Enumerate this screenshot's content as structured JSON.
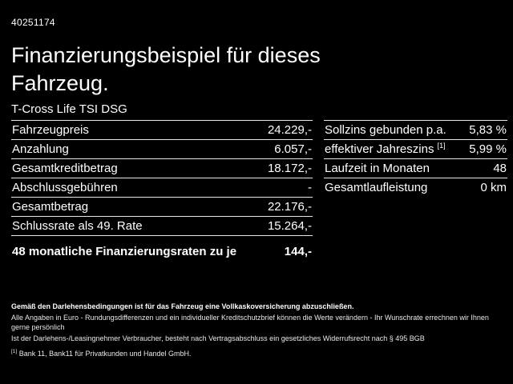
{
  "header": {
    "vehicle_id": "40251174",
    "title_line1": "Finanzierungsbeispiel für dieses",
    "title_line2": "Fahrzeug.",
    "model": "T-Cross Life TSI DSG"
  },
  "left_table": {
    "rows": [
      {
        "label": "Fahrzeugpreis",
        "value": "24.229,-"
      },
      {
        "label": "Anzahlung",
        "value": "6.057,-"
      },
      {
        "label": "Gesamtkreditbetrag",
        "value": "18.172,-"
      },
      {
        "label": "Abschlussgebühren",
        "value": "-"
      },
      {
        "label": "Gesamtbetrag",
        "value": "22.176,-"
      },
      {
        "label": "Schlussrate als 49. Rate",
        "value": "15.264,-"
      },
      {
        "label": "48 monatliche Finanzierungsraten zu je",
        "value": "144,-"
      }
    ]
  },
  "right_table": {
    "rows": [
      {
        "label": "Sollzins gebunden p.a.",
        "sup": "",
        "value": "5,83 %"
      },
      {
        "label": "effektiver Jahreszins ",
        "sup": "[1]",
        "value": "5,99 %"
      },
      {
        "label": "Laufzeit in Monaten",
        "sup": "",
        "value": "48"
      },
      {
        "label": "Gesamtlaufleistung",
        "sup": "",
        "value": "0 km"
      }
    ]
  },
  "footer": {
    "line1": "Gemäß den Darlehensbedingungen ist für das Fahrzeug eine Vollkaskoversicherung abzuschließen.",
    "line2": "Alle Angaben in Euro - Rundungsdifferenzen und ein individueller Kreditschutzbrief können die Werte verändern - Ihr Wunschrate errechnen wir Ihnen gerne persönlich",
    "line3": "Ist der Darlehens-/Leasingnehmer Verbraucher, besteht nach Vertragsabschluss ein gesetzliches Widerrufsrecht nach § 495 BGB",
    "note_ref": "[1]",
    "note_text": " Bank 11, Bank11 für Privatkunden und Handel GmbH.",
    "text_color": "#ffffff",
    "background_color": "#000000"
  }
}
